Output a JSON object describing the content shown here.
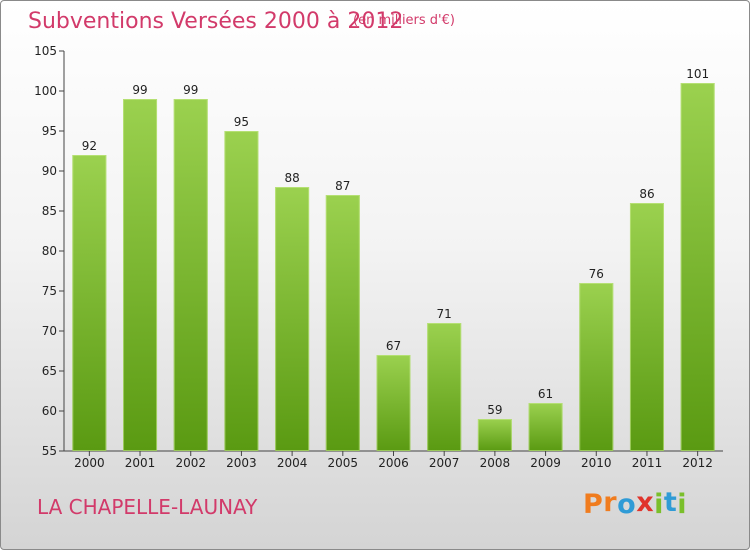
{
  "header": {
    "title": "Subventions Versées 2000 à 2012",
    "unit": "(en milliers d'€)"
  },
  "footer": {
    "commune": "LA CHAPELLE-LAUNAY",
    "logo_letters": [
      "P",
      "r",
      "o",
      "x",
      "i",
      "t",
      "i"
    ]
  },
  "colors": {
    "title": "#d23a6a",
    "bar_top": "#9bd14f",
    "bar_bottom": "#5a9a12",
    "logo": [
      "#f07c1e",
      "#f07c1e",
      "#2f9bd6",
      "#e0342c",
      "#7abf2a",
      "#2f9bd6",
      "#7abf2a"
    ]
  },
  "chart_data": {
    "type": "bar",
    "categories": [
      "2000",
      "2001",
      "2002",
      "2003",
      "2004",
      "2005",
      "2006",
      "2007",
      "2008",
      "2009",
      "2010",
      "2011",
      "2012"
    ],
    "values": [
      92,
      99,
      99,
      95,
      88,
      87,
      67,
      71,
      59,
      61,
      76,
      86,
      101
    ],
    "ylim": [
      55,
      105
    ],
    "yticks": [
      55,
      60,
      65,
      70,
      75,
      80,
      85,
      90,
      95,
      100,
      105
    ],
    "grid": false,
    "data_labels": true
  }
}
